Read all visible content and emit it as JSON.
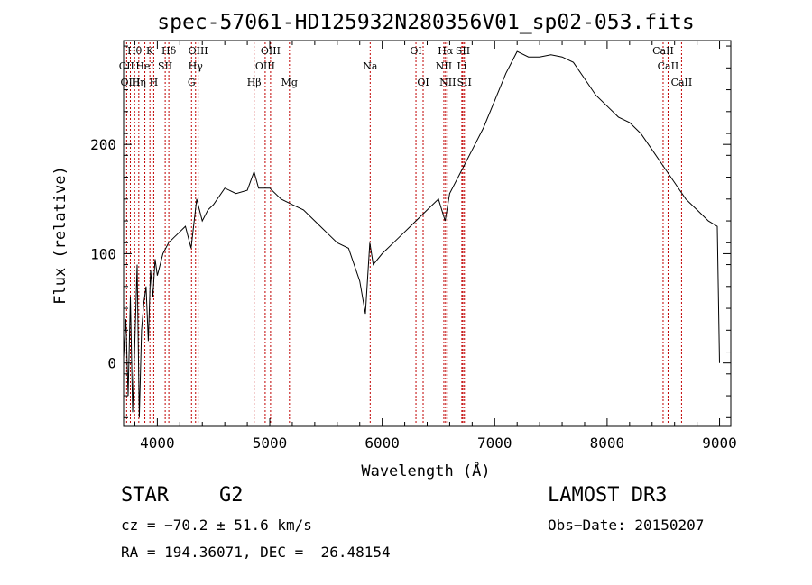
{
  "chart_data": {
    "type": "line",
    "title": "spec-57061-HD125932N280356V01_sp02-053.fits",
    "xlabel": "Wavelength (Å)",
    "ylabel": "Flux (relative)",
    "xlim": [
      3700,
      9100
    ],
    "ylim": [
      -58,
      295
    ],
    "x_ticks": [
      4000,
      5000,
      6000,
      7000,
      8000,
      9000
    ],
    "y_ticks": [
      0,
      100,
      200
    ],
    "series": [
      {
        "name": "flux",
        "x": [
          3700,
          3720,
          3740,
          3760,
          3780,
          3800,
          3820,
          3840,
          3860,
          3880,
          3900,
          3920,
          3940,
          3960,
          3980,
          4000,
          4050,
          4100,
          4150,
          4200,
          4250,
          4300,
          4350,
          4400,
          4450,
          4500,
          4600,
          4700,
          4800,
          4860,
          4900,
          5000,
          5100,
          5200,
          5300,
          5400,
          5500,
          5600,
          5700,
          5800,
          5850,
          5890,
          5920,
          6000,
          6100,
          6200,
          6300,
          6400,
          6500,
          6560,
          6600,
          6700,
          6800,
          6900,
          7000,
          7100,
          7200,
          7300,
          7400,
          7500,
          7600,
          7700,
          7800,
          7900,
          8000,
          8100,
          8200,
          8300,
          8400,
          8500,
          8600,
          8700,
          8800,
          8900,
          8980,
          9000
        ],
        "y": [
          5,
          40,
          -30,
          60,
          -45,
          20,
          90,
          -50,
          30,
          55,
          70,
          20,
          85,
          60,
          95,
          80,
          100,
          110,
          115,
          120,
          125,
          105,
          150,
          130,
          140,
          145,
          160,
          155,
          158,
          175,
          160,
          160,
          150,
          145,
          140,
          130,
          120,
          110,
          105,
          75,
          45,
          110,
          90,
          100,
          110,
          120,
          130,
          140,
          150,
          130,
          155,
          175,
          195,
          215,
          240,
          265,
          285,
          280,
          280,
          282,
          280,
          275,
          260,
          245,
          235,
          225,
          220,
          210,
          195,
          180,
          165,
          150,
          140,
          130,
          125,
          0
        ]
      }
    ],
    "spectral_lines": [
      {
        "label": "Hθ",
        "wavelength": 3798,
        "row": 1
      },
      {
        "label": "K",
        "wavelength": 3934,
        "row": 1
      },
      {
        "label": "Hδ",
        "wavelength": 4102,
        "row": 1
      },
      {
        "label": "OIII",
        "wavelength": 4363,
        "row": 1
      },
      {
        "label": "OIII",
        "wavelength": 5007,
        "row": 1
      },
      {
        "label": "OI",
        "wavelength": 6300,
        "row": 1
      },
      {
        "label": "Hα",
        "wavelength": 6563,
        "row": 1
      },
      {
        "label": "SII",
        "wavelength": 6717,
        "row": 1
      },
      {
        "label": "CaII",
        "wavelength": 8498,
        "row": 1
      },
      {
        "label": "CII",
        "wavelength": 3727,
        "row": 2
      },
      {
        "label": "HeI",
        "wavelength": 3889,
        "row": 2
      },
      {
        "label": "SII",
        "wavelength": 4070,
        "row": 2
      },
      {
        "label": "Hγ",
        "wavelength": 4340,
        "row": 2
      },
      {
        "label": "OIII",
        "wavelength": 4959,
        "row": 2
      },
      {
        "label": "Na",
        "wavelength": 5893,
        "row": 2
      },
      {
        "label": "NII",
        "wavelength": 6548,
        "row": 2
      },
      {
        "label": "Li",
        "wavelength": 6708,
        "row": 2
      },
      {
        "label": "CaII",
        "wavelength": 8542,
        "row": 2
      },
      {
        "label": "OIII",
        "wavelength": 3760,
        "row": 3
      },
      {
        "label": "Hη",
        "wavelength": 3835,
        "row": 3
      },
      {
        "label": "H",
        "wavelength": 3968,
        "row": 3
      },
      {
        "label": "G",
        "wavelength": 4304,
        "row": 3
      },
      {
        "label": "Hβ",
        "wavelength": 4861,
        "row": 3
      },
      {
        "label": "Mg",
        "wavelength": 5175,
        "row": 3
      },
      {
        "label": "OI",
        "wavelength": 6364,
        "row": 3
      },
      {
        "label": "NII",
        "wavelength": 6583,
        "row": 3
      },
      {
        "label": "SII",
        "wavelength": 6731,
        "row": 3
      },
      {
        "label": "CaII",
        "wavelength": 8662,
        "row": 3
      }
    ]
  },
  "info": {
    "object_type": "STAR",
    "subclass": "G2",
    "survey": "LAMOST DR3",
    "redshift": "cz = −70.2 ± 51.6 km/s",
    "obs_date": "Obs−Date: 20150207",
    "coords": "RA = 194.36071, DEC =  26.48154"
  }
}
